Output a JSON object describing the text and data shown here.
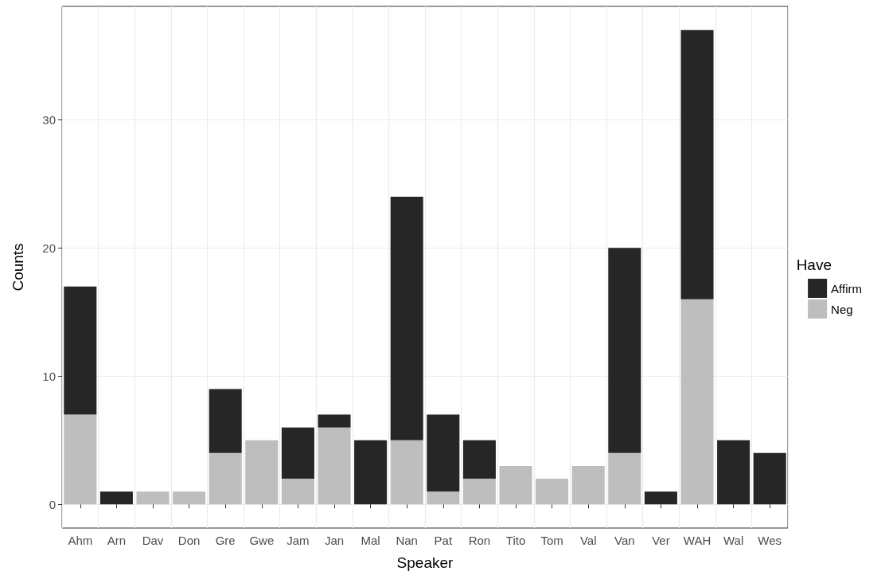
{
  "chart_data": {
    "type": "bar",
    "stacked": true,
    "xlabel": "Speaker",
    "ylabel": "Counts",
    "legend_title": "Have",
    "categories": [
      "Ahm",
      "Arn",
      "Dav",
      "Don",
      "Gre",
      "Gwe",
      "Jam",
      "Jan",
      "Mal",
      "Nan",
      "Pat",
      "Ron",
      "Tito",
      "Tom",
      "Val",
      "Van",
      "Ver",
      "WAH",
      "Wal",
      "Wes"
    ],
    "series": [
      {
        "name": "Neg",
        "color": "#bebebe",
        "values": [
          7,
          0,
          1,
          1,
          4,
          5,
          2,
          6,
          0,
          5,
          1,
          2,
          3,
          2,
          3,
          4,
          0,
          16,
          0,
          0
        ]
      },
      {
        "name": "Affirm",
        "color": "#262626",
        "values": [
          10,
          1,
          0,
          0,
          5,
          0,
          4,
          1,
          5,
          19,
          6,
          3,
          0,
          0,
          0,
          16,
          1,
          21,
          5,
          4
        ]
      }
    ],
    "ylim": [
      -1.85,
      38.85
    ],
    "yticks": [
      0,
      10,
      20,
      30
    ],
    "grid": true,
    "legend": "right"
  }
}
